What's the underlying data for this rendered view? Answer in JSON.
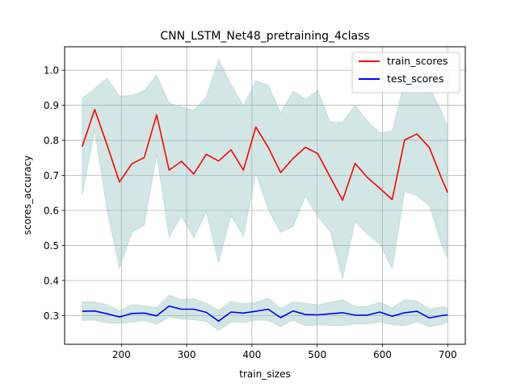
{
  "chart_data": {
    "type": "line",
    "title": "CNN_LSTM_Net48_pretraining_4class",
    "xlabel": "train_sizes",
    "ylabel": "scores_accuracy",
    "xlim": [
      113,
      727
    ],
    "ylim": [
      0.218,
      1.067
    ],
    "xticks": [
      200,
      300,
      400,
      500,
      600,
      700
    ],
    "yticks": [
      0.3,
      0.4,
      0.5,
      0.6,
      0.7,
      0.8,
      0.9,
      1.0
    ],
    "xtick_labels": [
      "200",
      "300",
      "400",
      "500",
      "600",
      "700"
    ],
    "ytick_labels": [
      "0.3",
      "0.4",
      "0.5",
      "0.6",
      "0.7",
      "0.8",
      "0.9",
      "1.0"
    ],
    "grid": true,
    "legend_position": "top-right",
    "band_color": "#8fc4bf",
    "x": [
      140,
      159,
      178,
      197,
      216,
      235,
      254,
      273,
      292,
      311,
      330,
      349,
      368,
      387,
      406,
      425,
      444,
      463,
      482,
      501,
      520,
      539,
      558,
      577,
      596,
      615,
      634,
      653,
      672,
      691,
      700
    ],
    "series": [
      {
        "name": "train_scores",
        "color": "#ff0000",
        "values": [
          0.782,
          0.888,
          0.787,
          0.681,
          0.733,
          0.751,
          0.873,
          0.715,
          0.74,
          0.704,
          0.76,
          0.741,
          0.773,
          0.715,
          0.838,
          0.78,
          0.708,
          0.748,
          0.78,
          0.762,
          0.695,
          0.629,
          0.734,
          0.694,
          0.663,
          0.631,
          0.801,
          0.818,
          0.779,
          0.69,
          0.651
        ],
        "band_upper": [
          0.92,
          0.948,
          0.977,
          0.926,
          0.928,
          0.942,
          0.986,
          0.906,
          0.896,
          0.885,
          0.924,
          1.03,
          0.96,
          0.898,
          0.97,
          0.958,
          0.878,
          0.94,
          0.918,
          0.942,
          0.852,
          0.852,
          0.9,
          0.855,
          0.822,
          0.826,
          0.97,
          0.985,
          0.952,
          0.88,
          0.838
        ],
        "band_lower": [
          0.645,
          0.83,
          0.6,
          0.435,
          0.537,
          0.558,
          0.76,
          0.524,
          0.585,
          0.522,
          0.595,
          0.452,
          0.585,
          0.527,
          0.706,
          0.602,
          0.537,
          0.554,
          0.64,
          0.582,
          0.54,
          0.405,
          0.568,
          0.532,
          0.503,
          0.434,
          0.654,
          0.642,
          0.613,
          0.5,
          0.464
        ]
      },
      {
        "name": "test_scores",
        "color": "#0000ff",
        "values": [
          0.312,
          0.313,
          0.305,
          0.296,
          0.306,
          0.307,
          0.299,
          0.327,
          0.318,
          0.318,
          0.309,
          0.284,
          0.31,
          0.307,
          0.312,
          0.318,
          0.294,
          0.313,
          0.303,
          0.302,
          0.305,
          0.308,
          0.301,
          0.301,
          0.31,
          0.298,
          0.308,
          0.312,
          0.293,
          0.3,
          0.302
        ],
        "band_upper": [
          0.339,
          0.339,
          0.331,
          0.314,
          0.331,
          0.328,
          0.323,
          0.358,
          0.346,
          0.348,
          0.335,
          0.315,
          0.34,
          0.334,
          0.337,
          0.35,
          0.32,
          0.339,
          0.335,
          0.33,
          0.338,
          0.345,
          0.326,
          0.326,
          0.338,
          0.322,
          0.345,
          0.342,
          0.318,
          0.325,
          0.322
        ],
        "band_lower": [
          0.286,
          0.287,
          0.279,
          0.278,
          0.281,
          0.286,
          0.275,
          0.296,
          0.29,
          0.288,
          0.283,
          0.258,
          0.282,
          0.28,
          0.287,
          0.286,
          0.268,
          0.287,
          0.271,
          0.274,
          0.272,
          0.271,
          0.276,
          0.276,
          0.282,
          0.274,
          0.271,
          0.282,
          0.268,
          0.275,
          0.282
        ]
      }
    ]
  }
}
